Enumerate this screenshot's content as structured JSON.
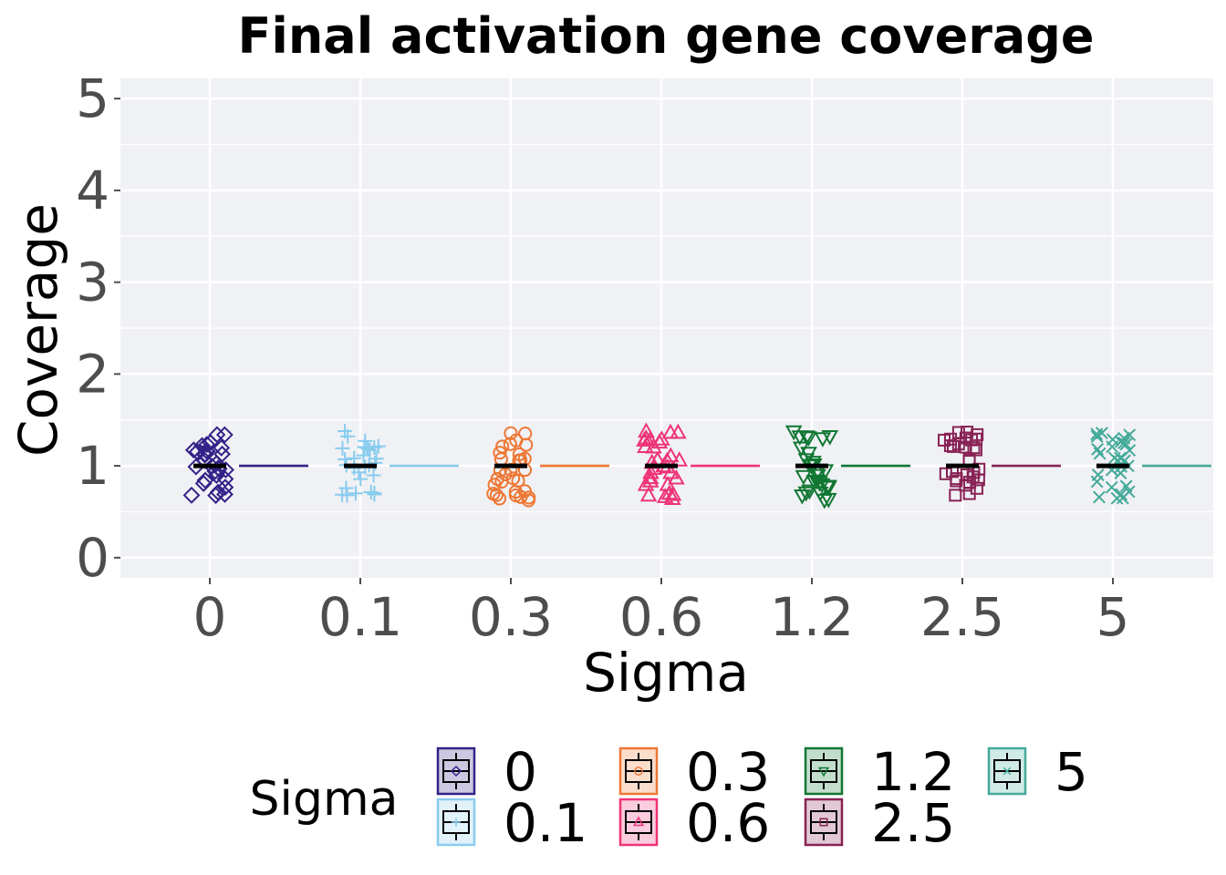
{
  "chart_data": {
    "type": "scatter",
    "title": "Final activation gene coverage",
    "xlabel": "Sigma",
    "ylabel": "Coverage",
    "ylim": [
      -0.22,
      5.22
    ],
    "yticks": [
      "0",
      "1",
      "2",
      "3",
      "4",
      "5"
    ],
    "categories": [
      "0",
      "0.1",
      "0.3",
      "0.6",
      "1.2",
      "2.5",
      "5"
    ],
    "grid": true,
    "legend": {
      "title": "Sigma",
      "placement": "bottom"
    },
    "series": [
      {
        "name": "0",
        "color": "#332288",
        "shape": "diamond",
        "median": 1,
        "values": [
          1,
          1,
          1,
          1,
          1,
          1,
          1,
          1,
          1,
          1,
          1,
          1,
          1,
          1,
          1,
          1,
          1,
          1,
          1,
          1,
          1,
          1,
          1,
          1,
          1,
          1,
          1,
          1,
          1,
          1
        ]
      },
      {
        "name": "0.1",
        "color": "#88CCEE",
        "shape": "plus",
        "median": 1,
        "values": [
          1,
          1,
          1,
          1,
          1,
          1,
          1,
          1,
          1,
          1,
          1,
          1,
          1,
          1,
          1,
          1,
          1,
          1,
          1,
          1,
          1,
          1,
          1,
          1,
          1,
          1,
          1,
          1,
          1,
          1
        ]
      },
      {
        "name": "0.3",
        "color": "#EE7733",
        "shape": "circle",
        "median": 1,
        "values": [
          1,
          1,
          1,
          1,
          1,
          1,
          1,
          1,
          1,
          1,
          1,
          1,
          1,
          1,
          1,
          1,
          1,
          1,
          1,
          1,
          1,
          1,
          1,
          1,
          1,
          1,
          1,
          1,
          1,
          1
        ]
      },
      {
        "name": "0.6",
        "color": "#EE3377",
        "shape": "triangle-up",
        "median": 1,
        "values": [
          1,
          1,
          1,
          1,
          1,
          1,
          1,
          1,
          1,
          1,
          1,
          1,
          1,
          1,
          1,
          1,
          1,
          1,
          1,
          1,
          1,
          1,
          1,
          1,
          1,
          1,
          1,
          1,
          1,
          1
        ]
      },
      {
        "name": "1.2",
        "color": "#117733",
        "shape": "triangle-down",
        "median": 1,
        "values": [
          1,
          1,
          1,
          1,
          1,
          1,
          1,
          1,
          1,
          1,
          1,
          1,
          1,
          1,
          1,
          1,
          1,
          1,
          1,
          1,
          1,
          1,
          1,
          1,
          1,
          1,
          1,
          1,
          1,
          1
        ]
      },
      {
        "name": "2.5",
        "color": "#882255",
        "shape": "square",
        "median": 1,
        "values": [
          1,
          1,
          1,
          1,
          1,
          1,
          1,
          1,
          1,
          1,
          1,
          1,
          1,
          1,
          1,
          1,
          1,
          1,
          1,
          1,
          1,
          1,
          1,
          1,
          1,
          1,
          1,
          1,
          1,
          1
        ]
      },
      {
        "name": "5",
        "color": "#44AA99",
        "shape": "cross",
        "median": 1,
        "values": [
          1,
          1,
          1,
          1,
          1,
          1,
          1,
          1,
          1,
          1,
          1,
          1,
          1,
          1,
          1,
          1,
          1,
          1,
          1,
          1,
          1,
          1,
          1,
          1,
          1,
          1,
          1,
          1,
          1,
          1
        ]
      }
    ]
  }
}
